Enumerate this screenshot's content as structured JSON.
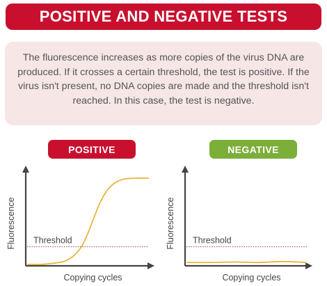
{
  "title": "POSITIVE AND NEGATIVE TESTS",
  "description": "The fluorescence increases as more copies of the virus DNA are produced. If it crosses a certain threshold, the test is positive. If the virus isn't present, no DNA copies are made and the threshold isn't reached. In this case, the test is negative.",
  "positive_label": "POSITIVE",
  "negative_label": "NEGATIVE",
  "threshold_label": "Threshold",
  "colors": {
    "title_red": "#c8102e",
    "positive_red": "#c8102e",
    "negative_green": "#7cae3a",
    "curve_yellow": "#e8b53a",
    "threshold_line": "#a0394e",
    "axis_gray": "#444444",
    "box_pink": "#f6e6e6"
  },
  "chart_data": [
    {
      "type": "line",
      "panel": "positive",
      "xlabel": "Copying cycles",
      "ylabel": "Fluorescence",
      "threshold": 0.18,
      "ylim": [
        0,
        1
      ],
      "xlim": [
        0,
        1
      ],
      "series": [
        {
          "x": [
            0,
            0.1,
            0.2,
            0.3,
            0.35,
            0.4,
            0.45,
            0.5,
            0.55,
            0.6,
            0.65,
            0.7,
            0.75,
            0.8,
            0.9,
            1.0
          ],
          "y": [
            0.0,
            0.0,
            0.01,
            0.03,
            0.06,
            0.11,
            0.19,
            0.32,
            0.48,
            0.63,
            0.74,
            0.81,
            0.85,
            0.87,
            0.88,
            0.88
          ]
        }
      ]
    },
    {
      "type": "line",
      "panel": "negative",
      "xlabel": "Copying cycles",
      "ylabel": "Fluorescence",
      "threshold": 0.18,
      "ylim": [
        0,
        1
      ],
      "xlim": [
        0,
        1
      ],
      "series": [
        {
          "x": [
            0,
            0.2,
            0.4,
            0.6,
            0.8,
            1.0
          ],
          "y": [
            0.02,
            0.02,
            0.025,
            0.02,
            0.03,
            0.02
          ]
        }
      ]
    }
  ]
}
